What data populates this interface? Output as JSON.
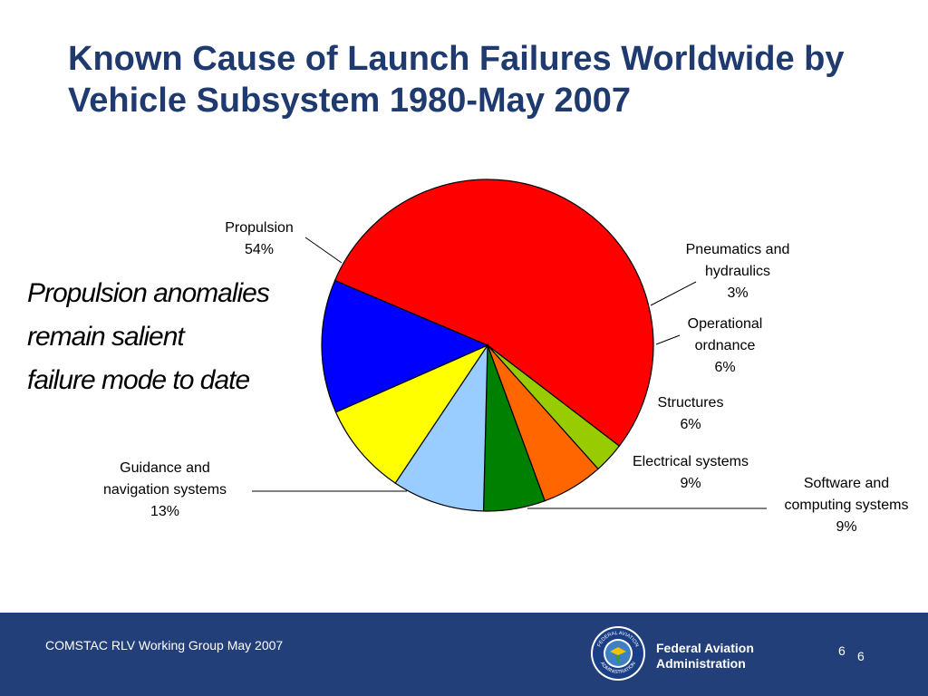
{
  "page": {
    "title": "Known Cause of Launch Failures Worldwide by Vehicle Subsystem 1980-May 2007",
    "callout": [
      "Propulsion anomalies",
      "remain salient",
      "failure mode to date"
    ]
  },
  "chart_data": {
    "type": "pie",
    "title": "",
    "slices": [
      {
        "label_lines": [
          "Propulsion"
        ],
        "pct": "54%",
        "value": 54,
        "color": "#ff0000"
      },
      {
        "label_lines": [
          "Pneumatics and",
          "hydraulics"
        ],
        "pct": "3%",
        "value": 3,
        "color": "#99cc00"
      },
      {
        "label_lines": [
          "Operational",
          "ordnance"
        ],
        "pct": "6%",
        "value": 6,
        "color": "#ff6600"
      },
      {
        "label_lines": [
          "Structures"
        ],
        "pct": "6%",
        "value": 6,
        "color": "#008000"
      },
      {
        "label_lines": [
          "Electrical systems"
        ],
        "pct": "9%",
        "value": 9,
        "color": "#99ccff"
      },
      {
        "label_lines": [
          "Software and",
          "computing systems"
        ],
        "pct": "9%",
        "value": 9,
        "color": "#ffff00"
      },
      {
        "label_lines": [
          "Guidance and",
          "navigation systems"
        ],
        "pct": "13%",
        "value": 13,
        "color": "#0000ff"
      }
    ]
  },
  "footer": {
    "left_text": "COMSTAC RLV Working Group  May 2007",
    "agency_line1": "Federal Aviation",
    "agency_line2": "Administration",
    "page_number_a": "6",
    "page_number_b": "6",
    "seal_text_top": "FEDERAL AVIATION",
    "seal_text_bottom": "ADMINISTRATION"
  },
  "colors": {
    "title": "#1f3a6e",
    "footer_bg": "#233f7a"
  }
}
